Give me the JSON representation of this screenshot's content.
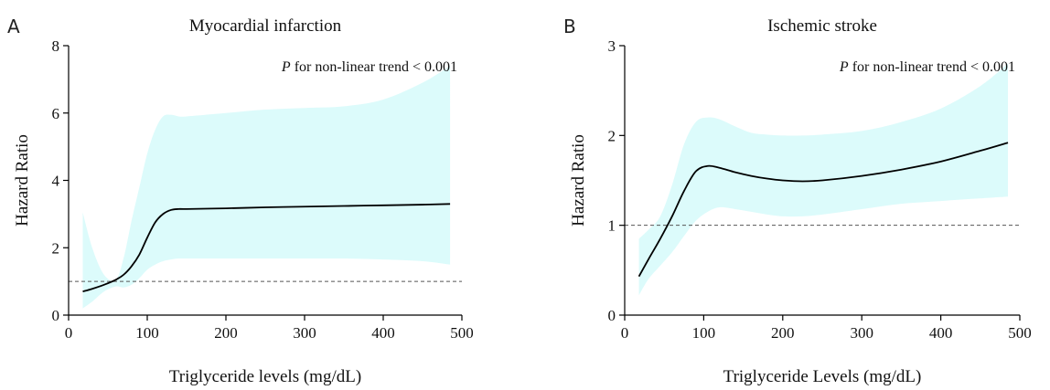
{
  "chart_data": [
    {
      "type": "line",
      "panel_label": "A",
      "title": "Myocardial infarction",
      "xlabel": "Triglyceride levels (mg/dL)",
      "ylabel": "Hazard Ratio",
      "annotation_p": "P",
      "annotation_text": " for non-linear trend < 0.001",
      "xlim": [
        0,
        500
      ],
      "ylim": [
        0,
        8
      ],
      "xticks": [
        0,
        100,
        200,
        300,
        400,
        500
      ],
      "yticks": [
        0,
        2,
        4,
        6,
        8
      ],
      "reference_lines": [
        1,
        0
      ],
      "ci_color": "#dcfbfb",
      "line_color": "#000000",
      "series": [
        {
          "x": [
            18,
            30,
            45,
            60,
            70,
            80,
            90,
            100,
            110,
            120,
            130,
            140,
            150,
            200,
            250,
            300,
            350,
            400,
            450,
            485
          ],
          "y": [
            0.7,
            0.78,
            0.9,
            1.05,
            1.2,
            1.45,
            1.8,
            2.3,
            2.75,
            3.0,
            3.12,
            3.15,
            3.15,
            3.17,
            3.2,
            3.22,
            3.24,
            3.26,
            3.28,
            3.3
          ],
          "lower": [
            0.2,
            0.4,
            0.7,
            0.85,
            0.82,
            0.9,
            1.1,
            1.35,
            1.5,
            1.6,
            1.65,
            1.68,
            1.68,
            1.68,
            1.68,
            1.68,
            1.68,
            1.65,
            1.6,
            1.5
          ],
          "upper": [
            3.05,
            2.0,
            1.2,
            1.05,
            1.7,
            2.8,
            3.8,
            4.8,
            5.5,
            5.9,
            5.95,
            5.9,
            5.9,
            6.0,
            6.1,
            6.15,
            6.2,
            6.4,
            6.9,
            7.4
          ]
        }
      ]
    },
    {
      "type": "line",
      "panel_label": "B",
      "title": "Ischemic stroke",
      "xlabel": "Triglyceride Levels (mg/dL)",
      "ylabel": "Hazard Ratio",
      "annotation_p": "P",
      "annotation_text": " for non-linear trend < 0.001",
      "xlim": [
        0,
        500
      ],
      "ylim": [
        0,
        3
      ],
      "xticks": [
        0,
        100,
        200,
        300,
        400,
        500
      ],
      "yticks": [
        0,
        1,
        2,
        3
      ],
      "reference_lines": [
        1
      ],
      "ci_color": "#dcfbfb",
      "line_color": "#000000",
      "series": [
        {
          "x": [
            18,
            30,
            45,
            60,
            75,
            90,
            105,
            120,
            140,
            160,
            180,
            200,
            225,
            250,
            300,
            350,
            400,
            450,
            485
          ],
          "y": [
            0.43,
            0.62,
            0.85,
            1.1,
            1.38,
            1.6,
            1.66,
            1.64,
            1.59,
            1.55,
            1.52,
            1.5,
            1.49,
            1.5,
            1.55,
            1.62,
            1.71,
            1.83,
            1.92
          ],
          "lower": [
            0.22,
            0.4,
            0.55,
            0.7,
            0.88,
            1.05,
            1.15,
            1.2,
            1.18,
            1.15,
            1.12,
            1.1,
            1.1,
            1.12,
            1.18,
            1.24,
            1.27,
            1.3,
            1.32
          ],
          "upper": [
            0.85,
            0.95,
            1.1,
            1.45,
            1.9,
            2.15,
            2.2,
            2.18,
            2.1,
            2.03,
            2.01,
            2.0,
            2.0,
            2.01,
            2.05,
            2.15,
            2.3,
            2.55,
            2.8
          ]
        }
      ]
    }
  ]
}
